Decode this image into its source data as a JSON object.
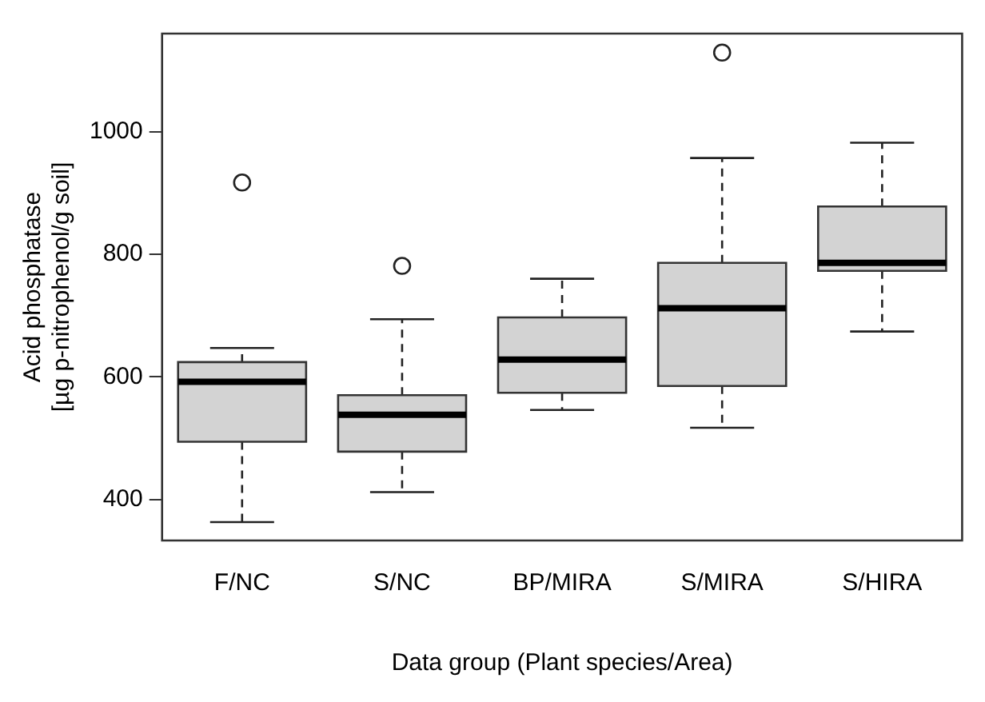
{
  "chart_data": {
    "type": "box",
    "xlabel": "Data group (Plant species/Area)",
    "ylabel": "Acid phosphatase\n[µg p-nitrophenol/g soil]",
    "categories": [
      "F/NC",
      "S/NC",
      "BP/MIRA",
      "S/MIRA",
      "S/HIRA"
    ],
    "color": "#d3d3d3",
    "boxes": [
      {
        "low": 363,
        "q1": 494,
        "median": 592,
        "q3": 624,
        "high": 647,
        "outliers": [
          917
        ]
      },
      {
        "low": 412,
        "q1": 478,
        "median": 538,
        "q3": 570,
        "high": 694,
        "outliers": [
          781
        ]
      },
      {
        "low": 546,
        "q1": 574,
        "median": 628,
        "q3": 697,
        "high": 760
      },
      {
        "low": 517,
        "q1": 585,
        "median": 712,
        "q3": 786,
        "high": 957,
        "outliers": [
          1129
        ]
      },
      {
        "low": 674,
        "q1": 773,
        "median": 786,
        "q3": 878,
        "high": 982
      }
    ],
    "ylim": [
      333,
      1160
    ],
    "yticks": [
      400,
      600,
      800,
      1000
    ],
    "grid": false,
    "legend": false
  }
}
